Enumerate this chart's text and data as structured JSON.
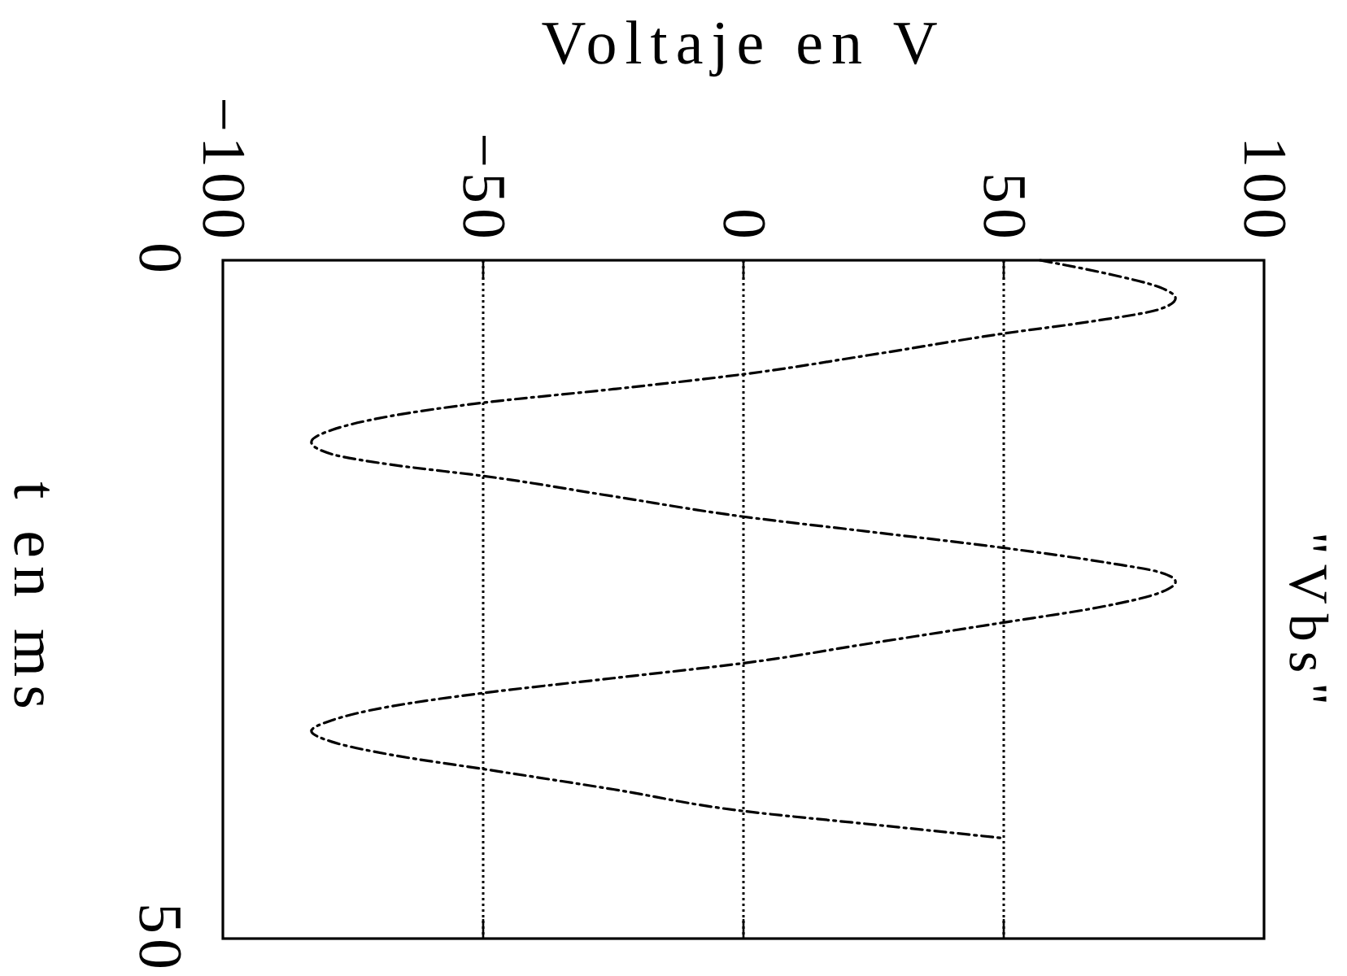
{
  "chart_data": {
    "type": "line",
    "xlabel": "Voltaje en V",
    "ylabel": "t en ms",
    "series": [
      {
        "name": "\"Vbs\"",
        "color": "#000000",
        "x": [
          57,
          70,
          80,
          83,
          80,
          67,
          50,
          24,
          0,
          -25,
          -50,
          -68,
          -79,
          -83,
          -79,
          -67,
          -50,
          -25,
          0,
          24,
          50,
          70,
          80,
          83,
          80,
          68,
          50,
          25,
          0,
          -25,
          -50,
          -68,
          -79,
          -83,
          -79,
          -67,
          -50,
          -25,
          0,
          25,
          50
        ],
        "values": [
          0,
          1,
          2,
          2.8,
          3.6,
          4.5,
          5.4,
          7,
          8.4,
          9.5,
          10.5,
          11.5,
          12.5,
          13.4,
          14.3,
          15.1,
          15.9,
          17.4,
          18.9,
          20,
          21.2,
          22.3,
          23,
          23.7,
          24.5,
          25.6,
          26.7,
          28.2,
          29.7,
          30.8,
          31.9,
          32.9,
          33.9,
          34.7,
          35.5,
          36.5,
          37.5,
          39,
          40.6,
          41.6,
          42.6
        ]
      }
    ],
    "xlim": [
      -100,
      100
    ],
    "xticks": [
      {
        "value": -100,
        "label": "−100"
      },
      {
        "value": -50,
        "label": "−50"
      },
      0,
      50,
      100
    ],
    "ylim": [
      50,
      0
    ],
    "yticks": [
      0,
      50
    ],
    "grid": "x",
    "legend": "right",
    "line_style": "dashed"
  }
}
